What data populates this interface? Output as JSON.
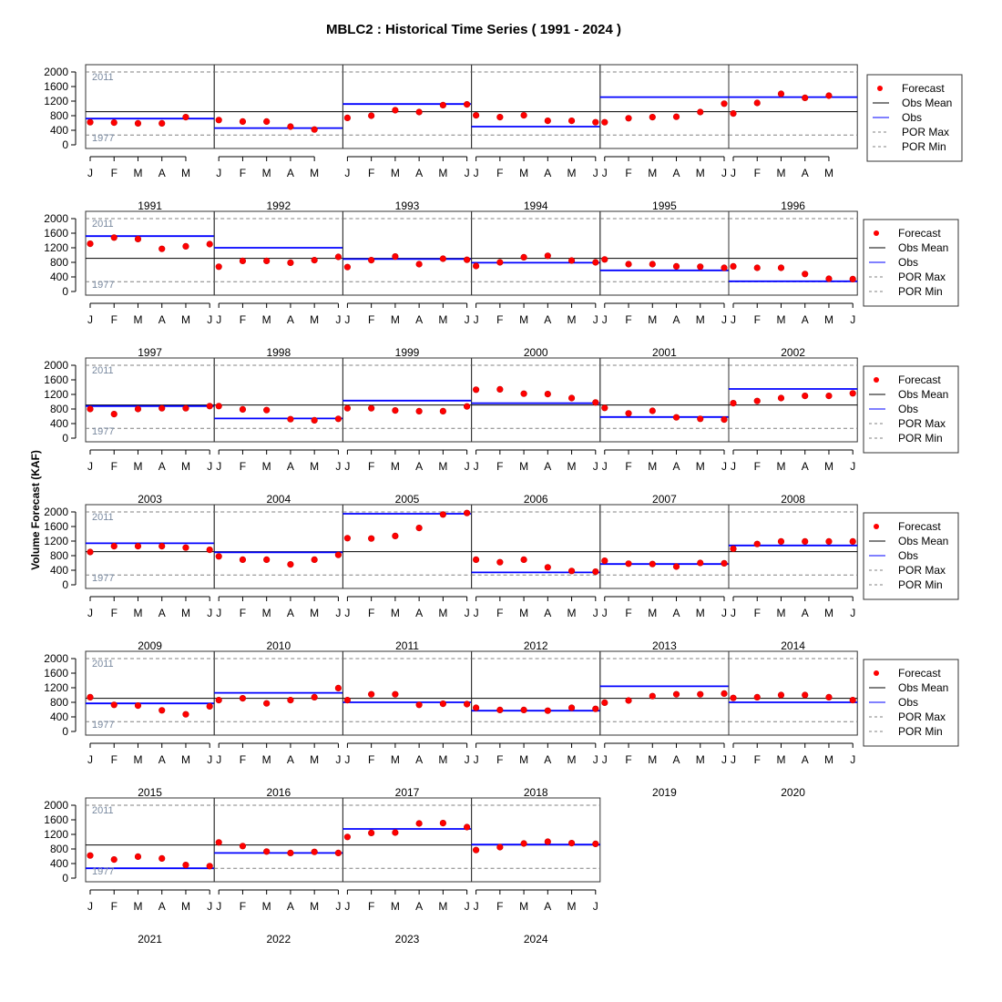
{
  "chart_data": {
    "type": "scatter",
    "title": "MBLC2 : Historical Time Series ( 1991 - 2024 )",
    "ylabel": "Volume Forecast (KAF)",
    "yticks": [
      0,
      400,
      800,
      1200,
      1600,
      2000
    ],
    "ylim": [
      -100,
      2200
    ],
    "obs_mean": 910,
    "por_max": 2000,
    "por_max_year": "2011",
    "por_min": 270,
    "por_min_year": "1977",
    "legend": {
      "forecast": "Forecast",
      "obs_mean": "Obs Mean",
      "obs": "Obs",
      "por_max": "POR Max",
      "por_min": "POR Min"
    },
    "colors": {
      "forecast": "#ff0000",
      "obs": "#0000ff",
      "obs_mean": "#000000",
      "por": "#808080",
      "ref_label": "#7a8aa0"
    },
    "panels": [
      {
        "year": "1991",
        "months": [
          "J",
          "F",
          "M",
          "A",
          "M"
        ],
        "obs": 720,
        "forecast": [
          620,
          610,
          590,
          590,
          760
        ]
      },
      {
        "year": "1992",
        "months": [
          "J",
          "F",
          "M",
          "A",
          "M"
        ],
        "obs": 460,
        "forecast": [
          680,
          640,
          640,
          500,
          420
        ]
      },
      {
        "year": "1993",
        "months": [
          "J",
          "F",
          "M",
          "A",
          "M",
          "J"
        ],
        "obs": 1120,
        "forecast": [
          740,
          800,
          950,
          900,
          1090,
          1110
        ]
      },
      {
        "year": "1994",
        "months": [
          "J",
          "F",
          "M",
          "A",
          "M",
          "J"
        ],
        "obs": 500,
        "forecast": [
          810,
          760,
          810,
          660,
          660,
          620
        ]
      },
      {
        "year": "1995",
        "months": [
          "J",
          "F",
          "M",
          "A",
          "M",
          "J"
        ],
        "obs": 1310,
        "forecast": [
          620,
          730,
          760,
          770,
          900,
          1130
        ]
      },
      {
        "year": "1996",
        "months": [
          "J",
          "F",
          "M",
          "A",
          "M"
        ],
        "obs": 1310,
        "forecast": [
          860,
          1150,
          1400,
          1290,
          1350
        ]
      },
      {
        "year": "1997",
        "months": [
          "J",
          "F",
          "M",
          "A",
          "M",
          "J"
        ],
        "obs": 1520,
        "forecast": [
          1310,
          1480,
          1440,
          1170,
          1240,
          1300
        ]
      },
      {
        "year": "1998",
        "months": [
          "J",
          "F",
          "M",
          "A",
          "M",
          "J"
        ],
        "obs": 1200,
        "forecast": [
          680,
          840,
          840,
          790,
          860,
          950
        ]
      },
      {
        "year": "1999",
        "months": [
          "J",
          "F",
          "M",
          "A",
          "M",
          "J"
        ],
        "obs": 890,
        "forecast": [
          670,
          860,
          960,
          750,
          900,
          870
        ]
      },
      {
        "year": "2000",
        "months": [
          "J",
          "F",
          "M",
          "A",
          "M",
          "J"
        ],
        "obs": 790,
        "forecast": [
          700,
          800,
          940,
          980,
          850,
          800
        ]
      },
      {
        "year": "2001",
        "months": [
          "J",
          "F",
          "M",
          "A",
          "M",
          "J"
        ],
        "obs": 580,
        "forecast": [
          880,
          750,
          750,
          690,
          680,
          650
        ]
      },
      {
        "year": "2002",
        "months": [
          "J",
          "F",
          "M",
          "A",
          "M",
          "J"
        ],
        "obs": 280,
        "forecast": [
          690,
          650,
          650,
          480,
          350,
          340
        ]
      },
      {
        "year": "2003",
        "months": [
          "J",
          "F",
          "M",
          "A",
          "M",
          "J"
        ],
        "obs": 880,
        "forecast": [
          800,
          660,
          800,
          820,
          820,
          880
        ]
      },
      {
        "year": "2004",
        "months": [
          "J",
          "F",
          "M",
          "A",
          "M",
          "J"
        ],
        "obs": 540,
        "forecast": [
          880,
          790,
          770,
          520,
          490,
          530
        ]
      },
      {
        "year": "2005",
        "months": [
          "J",
          "F",
          "M",
          "A",
          "M",
          "J"
        ],
        "obs": 1030,
        "forecast": [
          820,
          820,
          760,
          740,
          740,
          870
        ]
      },
      {
        "year": "2006",
        "months": [
          "J",
          "F",
          "M",
          "A",
          "M",
          "J"
        ],
        "obs": 960,
        "forecast": [
          1330,
          1340,
          1220,
          1210,
          1100,
          980
        ]
      },
      {
        "year": "2007",
        "months": [
          "J",
          "F",
          "M",
          "A",
          "M",
          "J"
        ],
        "obs": 580,
        "forecast": [
          830,
          680,
          750,
          570,
          530,
          510
        ]
      },
      {
        "year": "2008",
        "months": [
          "J",
          "F",
          "M",
          "A",
          "M",
          "J"
        ],
        "obs": 1350,
        "forecast": [
          960,
          1020,
          1100,
          1160,
          1160,
          1230
        ]
      },
      {
        "year": "2009",
        "months": [
          "J",
          "F",
          "M",
          "A",
          "M",
          "J"
        ],
        "obs": 1140,
        "forecast": [
          900,
          1060,
          1060,
          1060,
          1020,
          960
        ]
      },
      {
        "year": "2010",
        "months": [
          "J",
          "F",
          "M",
          "A",
          "M",
          "J"
        ],
        "obs": 890,
        "forecast": [
          780,
          690,
          690,
          560,
          690,
          820
        ]
      },
      {
        "year": "2011",
        "months": [
          "J",
          "F",
          "M",
          "A",
          "M",
          "J"
        ],
        "obs": 1950,
        "forecast": [
          1280,
          1270,
          1340,
          1560,
          1930,
          1970
        ]
      },
      {
        "year": "2012",
        "months": [
          "J",
          "F",
          "M",
          "A",
          "M",
          "J"
        ],
        "obs": 340,
        "forecast": [
          690,
          620,
          690,
          480,
          380,
          360
        ]
      },
      {
        "year": "2013",
        "months": [
          "J",
          "F",
          "M",
          "A",
          "M",
          "J"
        ],
        "obs": 570,
        "forecast": [
          660,
          580,
          570,
          500,
          600,
          590
        ]
      },
      {
        "year": "2014",
        "months": [
          "J",
          "F",
          "M",
          "A",
          "M",
          "J"
        ],
        "obs": 1080,
        "forecast": [
          990,
          1120,
          1190,
          1190,
          1190,
          1190
        ]
      },
      {
        "year": "2015",
        "months": [
          "J",
          "F",
          "M",
          "A",
          "M",
          "J"
        ],
        "obs": 770,
        "forecast": [
          940,
          730,
          710,
          580,
          470,
          690
        ]
      },
      {
        "year": "2016",
        "months": [
          "J",
          "F",
          "M",
          "A",
          "M",
          "J"
        ],
        "obs": 1060,
        "forecast": [
          860,
          910,
          770,
          860,
          940,
          1190
        ]
      },
      {
        "year": "2017",
        "months": [
          "J",
          "F",
          "M",
          "A",
          "M",
          "J"
        ],
        "obs": 800,
        "forecast": [
          860,
          1020,
          1020,
          730,
          760,
          750
        ]
      },
      {
        "year": "2018",
        "months": [
          "J",
          "F",
          "M",
          "A",
          "M",
          "J"
        ],
        "obs": 570,
        "forecast": [
          650,
          590,
          590,
          570,
          650,
          620
        ]
      },
      {
        "year": "2019",
        "months": [
          "J",
          "F",
          "M",
          "A",
          "M",
          "J"
        ],
        "obs": 1240,
        "forecast": [
          790,
          850,
          970,
          1020,
          1020,
          1040
        ]
      },
      {
        "year": "2020",
        "months": [
          "J",
          "F",
          "M",
          "A",
          "M",
          "J"
        ],
        "obs": 800,
        "forecast": [
          920,
          940,
          1000,
          1000,
          940,
          860
        ]
      },
      {
        "year": "2021",
        "months": [
          "J",
          "F",
          "M",
          "A",
          "M",
          "J"
        ],
        "obs": 270,
        "forecast": [
          620,
          510,
          590,
          540,
          360,
          330
        ]
      },
      {
        "year": "2022",
        "months": [
          "J",
          "F",
          "M",
          "A",
          "M",
          "J"
        ],
        "obs": 690,
        "forecast": [
          980,
          880,
          730,
          690,
          720,
          690
        ]
      },
      {
        "year": "2023",
        "months": [
          "J",
          "F",
          "M",
          "A",
          "M",
          "J"
        ],
        "obs": 1350,
        "forecast": [
          1130,
          1240,
          1250,
          1500,
          1510,
          1400
        ]
      },
      {
        "year": "2024",
        "months": [
          "J",
          "F",
          "M",
          "A",
          "M",
          "J"
        ],
        "obs": 920,
        "forecast": [
          770,
          850,
          950,
          1000,
          960,
          940
        ]
      }
    ]
  }
}
